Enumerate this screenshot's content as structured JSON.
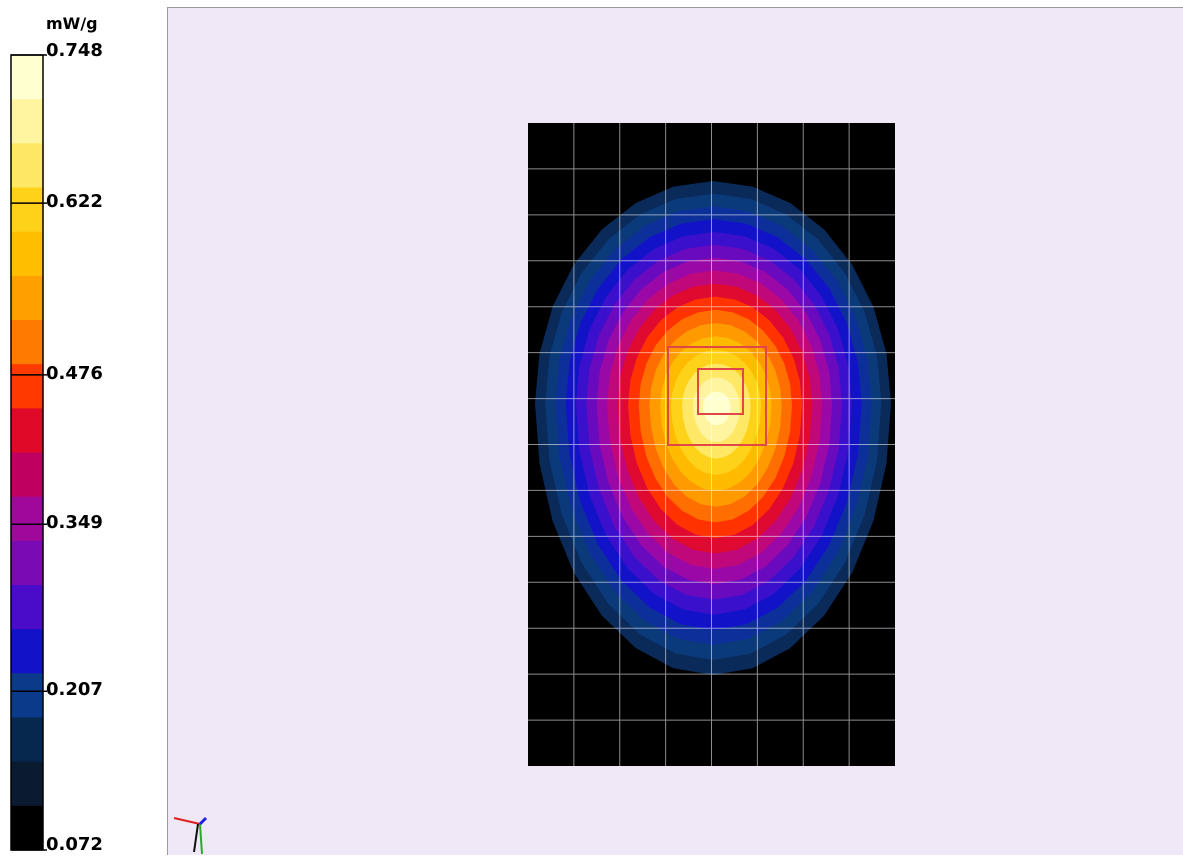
{
  "chart_data": {
    "type": "heatmap",
    "colorbar": {
      "unit": "mW/g",
      "min": 0.072,
      "max": 0.748,
      "tick_labels": [
        "0.748",
        "0.622",
        "0.476",
        "0.349",
        "0.207",
        "0.072"
      ],
      "tick_values": [
        0.748,
        0.622,
        0.476,
        0.349,
        0.207,
        0.072
      ],
      "levels": 16,
      "colors": [
        "#000000",
        "#0a1a30",
        "#06284e",
        "#0b3a7a",
        "#0c2bb0",
        "#1212cc",
        "#4a0cc8",
        "#7a0ab4",
        "#a8089e",
        "#c80870",
        "#e00a28",
        "#ff2a00",
        "#ff6400",
        "#ff8800",
        "#ffa800",
        "#ffc400",
        "#ffdd20",
        "#fff066",
        "#fffaa0",
        "#ffffd0"
      ]
    },
    "grid": {
      "columns": 8,
      "rows": 14,
      "gridlines": true
    },
    "peak": {
      "column": 4,
      "row": 6,
      "value": 0.748
    },
    "marker_boxes": 2
  },
  "colors": {
    "plot_background": "#f0e8f6",
    "grid_line": "#ffffff",
    "marker_box": "#e04848",
    "outside_field": "#000000"
  },
  "icons": {
    "axes": "xyz-axes-icon"
  }
}
